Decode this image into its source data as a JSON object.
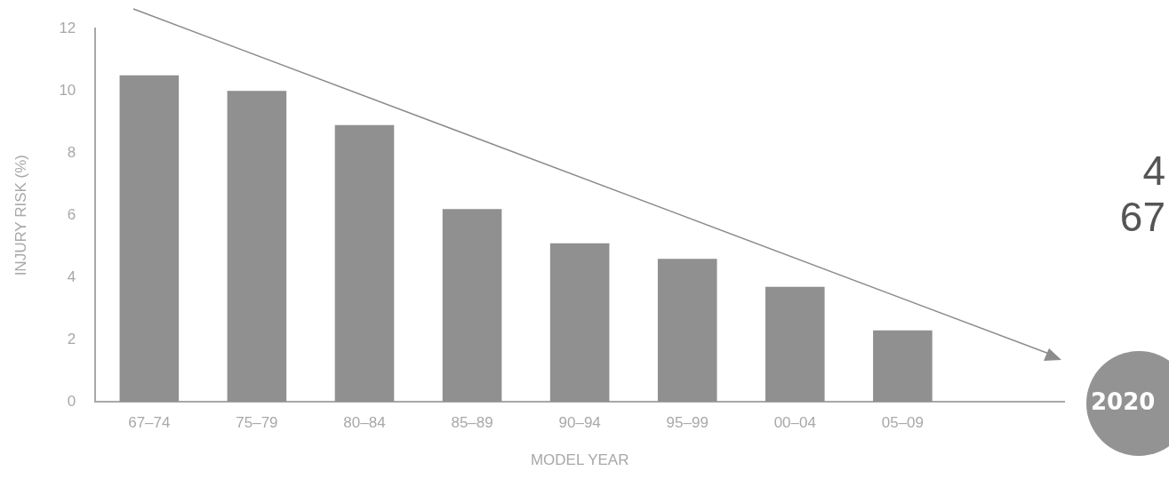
{
  "chart_data": {
    "type": "bar",
    "xlabel": "MODEL YEAR",
    "ylabel": "INJURY RISK (%)",
    "categories": [
      "67–74",
      "75–79",
      "80–84",
      "85–89",
      "90–94",
      "95–99",
      "00–04",
      "05–09",
      null
    ],
    "values": [
      10.5,
      10.0,
      8.9,
      6.2,
      5.1,
      4.6,
      3.7,
      2.3,
      null
    ],
    "color": "#909090",
    "ylim": [
      0,
      12
    ],
    "yticks": [
      0,
      2,
      4,
      6,
      8,
      10,
      12
    ],
    "grid": false,
    "legend": false,
    "annotations": [
      "2020",
      "4",
      "67"
    ]
  }
}
